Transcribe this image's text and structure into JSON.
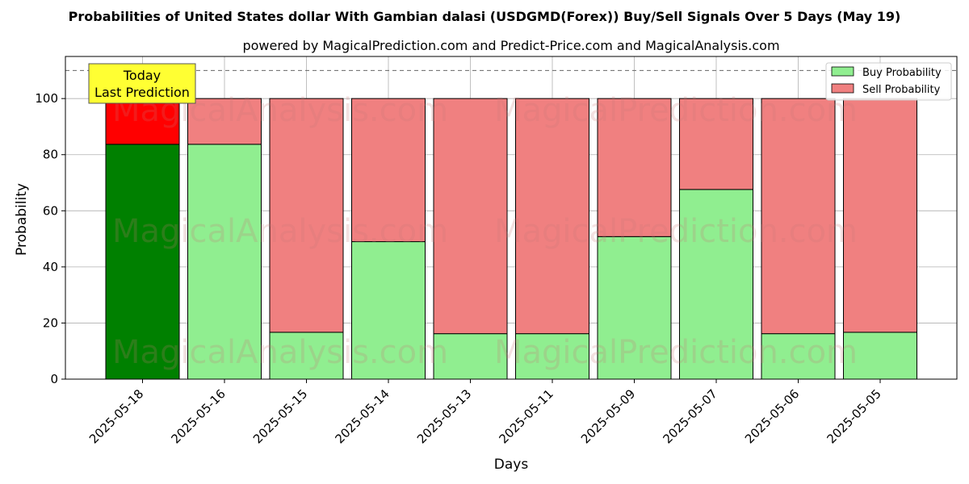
{
  "chart_data": {
    "type": "bar",
    "stacked": true,
    "title": "Probabilities of United States dollar With Gambian dalasi (USDGMD(Forex)) Buy/Sell Signals Over 5 Days (May 19)",
    "subtitle": "powered by MagicalPrediction.com and Predict-Price.com and MagicalAnalysis.com",
    "xlabel": "Days",
    "ylabel": "Probability",
    "ylim": [
      0,
      115
    ],
    "yticks": [
      0,
      20,
      40,
      60,
      80,
      100
    ],
    "reference_line": 110,
    "grid": true,
    "legend_position": "top-right",
    "categories": [
      "2025-05-18",
      "2025-05-16",
      "2025-05-15",
      "2025-05-14",
      "2025-05-13",
      "2025-05-11",
      "2025-05-09",
      "2025-05-07",
      "2025-05-06",
      "2025-05-05"
    ],
    "series": [
      {
        "name": "Buy Probability",
        "color": "#90ee90",
        "highlight_color": "#008000",
        "values": [
          83.7,
          83.7,
          16.7,
          49.0,
          16.2,
          16.2,
          50.8,
          67.6,
          16.2,
          16.7
        ]
      },
      {
        "name": "Sell Probability",
        "color": "#f08080",
        "highlight_color": "#ff0000",
        "values": [
          16.3,
          16.3,
          83.3,
          51.0,
          83.8,
          83.8,
          49.2,
          32.4,
          83.8,
          83.3
        ]
      }
    ],
    "annotation": {
      "line1": "Today",
      "line2": "Last Prediction",
      "color": "#ffff33"
    },
    "watermarks": [
      "MagicalAnalysis.com",
      "MagicalPrediction.com"
    ]
  }
}
